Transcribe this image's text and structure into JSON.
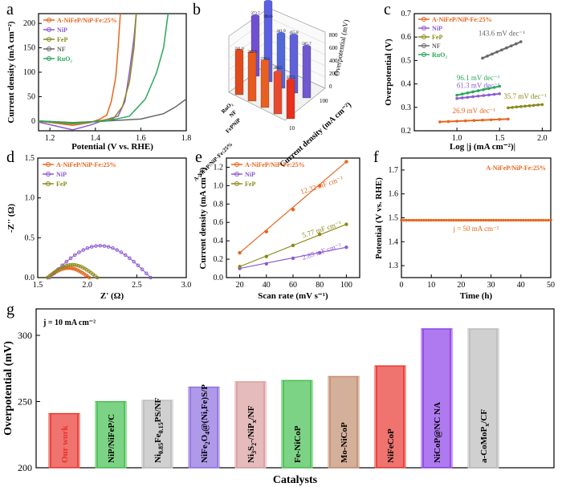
{
  "chart_data": [
    {
      "panel": "a",
      "type": "line",
      "xlabel": "Potential (V vs. RHE)",
      "ylabel": "Current density (mA cm⁻²)",
      "xlim": [
        1.15,
        1.8
      ],
      "ylim": [
        -20,
        220
      ],
      "xticks": [
        "1.2",
        "1.4",
        "1.6",
        "1.8"
      ],
      "yticks": [
        "0",
        "50",
        "100",
        "150",
        "200"
      ],
      "legend_position": "top-left",
      "series": [
        {
          "name": "A-NiFeP/NiP-Fe:25%",
          "color": "#e8651e",
          "points": [
            [
              1.15,
              0
            ],
            [
              1.3,
              -9
            ],
            [
              1.38,
              -3
            ],
            [
              1.42,
              4
            ],
            [
              1.45,
              12
            ],
            [
              1.47,
              40
            ],
            [
              1.49,
              90
            ],
            [
              1.5,
              150
            ],
            [
              1.51,
              220
            ]
          ]
        },
        {
          "name": "NiP",
          "color": "#8e5ad3",
          "points": [
            [
              1.15,
              -2
            ],
            [
              1.3,
              -18
            ],
            [
              1.38,
              -8
            ],
            [
              1.44,
              2
            ],
            [
              1.5,
              10
            ],
            [
              1.53,
              40
            ],
            [
              1.55,
              100
            ],
            [
              1.57,
              170
            ],
            [
              1.58,
              220
            ]
          ]
        },
        {
          "name": "FeP",
          "color": "#8a8a1a",
          "points": [
            [
              1.15,
              -1
            ],
            [
              1.3,
              -6
            ],
            [
              1.38,
              -2
            ],
            [
              1.48,
              5
            ],
            [
              1.52,
              30
            ],
            [
              1.55,
              80
            ],
            [
              1.57,
              150
            ],
            [
              1.58,
              220
            ]
          ]
        },
        {
          "name": "NF",
          "color": "#666666",
          "points": [
            [
              1.15,
              0
            ],
            [
              1.3,
              -3
            ],
            [
              1.45,
              0
            ],
            [
              1.6,
              4
            ],
            [
              1.7,
              15
            ],
            [
              1.75,
              28
            ],
            [
              1.8,
              45
            ]
          ]
        },
        {
          "name": "RuO₂",
          "color": "#2aa85a",
          "points": [
            [
              1.15,
              0
            ],
            [
              1.3,
              -4
            ],
            [
              1.45,
              0
            ],
            [
              1.55,
              10
            ],
            [
              1.62,
              45
            ],
            [
              1.67,
              100
            ],
            [
              1.7,
              150
            ],
            [
              1.72,
              220
            ]
          ]
        }
      ]
    },
    {
      "panel": "b",
      "type": "bar",
      "zlabel": "Overpotential (mV)",
      "xlabel": "Current density (mA cm⁻²)",
      "categories_current": [
        "10",
        "100"
      ],
      "catalysts": [
        "A-NiFeP/NiP-Fe:25%",
        "FeP",
        "NiP",
        "NF",
        "RuO₂"
      ],
      "zticks": [
        "0",
        "200",
        "400",
        "600",
        "800"
      ],
      "bar_labels": [
        "241.0",
        "262.3",
        "279.3",
        "286.5",
        "327.5",
        "373.7",
        "393.6",
        "441.9",
        "455.8",
        "585.7"
      ]
    },
    {
      "panel": "c",
      "type": "scatter",
      "xlabel": "Log |j (mA cm⁻²)|",
      "ylabel": "Overpotential (V)",
      "xlim": [
        0.5,
        2.1
      ],
      "ylim": [
        0.2,
        0.7
      ],
      "xticks": [
        "1.0",
        "1.5",
        "2.0"
      ],
      "yticks": [
        "0.2",
        "0.3",
        "0.4",
        "0.5",
        "0.6",
        "0.7"
      ],
      "legend_position": "top-left",
      "series": [
        {
          "name": "A-NiFeP/NiP-Fe:25%",
          "color": "#e8651e",
          "slope_label": "26.9 mV dec⁻¹",
          "x": [
            0.8,
            1.6
          ],
          "y": [
            0.238,
            0.25
          ]
        },
        {
          "name": "NiP",
          "color": "#8e5ad3",
          "slope_label": "61.3 mV dec⁻¹",
          "x": [
            1.0,
            1.5
          ],
          "y": [
            0.338,
            0.358
          ]
        },
        {
          "name": "FeP",
          "color": "#8a8a1a",
          "slope_label": "35.7 mV dec⁻¹",
          "x": [
            1.6,
            2.0
          ],
          "y": [
            0.298,
            0.312
          ]
        },
        {
          "name": "NF",
          "color": "#666666",
          "slope_label": "143.6 mV dec⁻¹",
          "x": [
            1.3,
            1.75
          ],
          "y": [
            0.51,
            0.58
          ]
        },
        {
          "name": "RuO₂",
          "color": "#2aa85a",
          "slope_label": "96.1 mV dec⁻¹",
          "x": [
            1.0,
            1.5
          ],
          "y": [
            0.352,
            0.39
          ]
        }
      ]
    },
    {
      "panel": "d",
      "type": "scatter",
      "xlabel": "Z' (Ω)",
      "ylabel": "-Z'' (Ω)",
      "xlim": [
        1.5,
        3.0
      ],
      "ylim": [
        0,
        1.5
      ],
      "xticks": [
        "1.5",
        "2.0",
        "2.5",
        "3.0"
      ],
      "yticks": [
        "0.0",
        "0.5",
        "1.0",
        "1.5"
      ],
      "legend_position": "top-left",
      "series": [
        {
          "name": "A-NiFeP/NiP-Fe:25%",
          "color": "#e8651e",
          "arc": {
            "start": 1.6,
            "end": 2.02,
            "height": 0.12
          }
        },
        {
          "name": "NiP",
          "color": "#8e5ad3",
          "arc": {
            "start": 1.62,
            "end": 2.64,
            "height": 0.4
          }
        },
        {
          "name": "FeP",
          "color": "#8a8a1a",
          "arc": {
            "start": 1.6,
            "end": 2.1,
            "height": 0.16
          }
        }
      ]
    },
    {
      "panel": "e",
      "type": "scatter",
      "xlabel": "Scan rate (mV s⁻¹)",
      "ylabel": "Current density (mA cm⁻²)",
      "xlim": [
        10,
        110
      ],
      "ylim": [
        0.0,
        1.3
      ],
      "xticks": [
        "20",
        "40",
        "60",
        "80",
        "100"
      ],
      "yticks": [
        "0.0",
        "0.2",
        "0.4",
        "0.6",
        "0.8",
        "1.0",
        "1.2"
      ],
      "legend_position": "top-left",
      "x": [
        20,
        40,
        60,
        80,
        100
      ],
      "series": [
        {
          "name": "A-NiFeP/NiP-Fe:25%",
          "color": "#e8651e",
          "label": "12.32 mF cm⁻²",
          "values": [
            0.27,
            0.5,
            0.74,
            1.0,
            1.26
          ]
        },
        {
          "name": "NiP",
          "color": "#8e5ad3",
          "label": "2.89 mF cm⁻²",
          "values": [
            0.1,
            0.15,
            0.21,
            0.27,
            0.33
          ]
        },
        {
          "name": "FeP",
          "color": "#8a8a1a",
          "label": "5.77 mF cm⁻²",
          "values": [
            0.12,
            0.23,
            0.35,
            0.47,
            0.58
          ]
        }
      ]
    },
    {
      "panel": "f",
      "type": "line",
      "xlabel": "Time (h)",
      "ylabel": "Potential (V vs. RHE)",
      "xlim": [
        0,
        50
      ],
      "ylim": [
        1.25,
        1.75
      ],
      "xticks": [
        "0",
        "10",
        "20",
        "30",
        "40",
        "50"
      ],
      "yticks": [
        "1.3",
        "1.4",
        "1.5",
        "1.6",
        "1.7"
      ],
      "legend": "A-NiFeP/NiP-Fe:25%",
      "annotation": "j = 50 mA cm⁻²",
      "series": [
        {
          "name": "A-NiFeP/NiP-Fe:25%",
          "color": "#e8651e",
          "value": 1.49
        }
      ]
    },
    {
      "panel": "g",
      "type": "bar",
      "xlabel": "Catalysts",
      "ylabel": "Overpotential (mV)",
      "annotation": "j = 10 mA cm⁻²",
      "ylim": [
        200,
        320
      ],
      "yticks": [
        "200",
        "250",
        "300"
      ],
      "categories": [
        "Our work",
        "NiP/NiFeP/C",
        "Ni0.85Fe0.15PS/NF",
        "NiFe2O4@(Ni,Fe)S/P",
        "Ni3S2-/NiPx/NF",
        "Fe-NiCoP",
        "Mo-NiCoP",
        "NiFeCoP",
        "NiCoP@NC NA",
        "a-CoMoPx/CF"
      ],
      "values": [
        241,
        250,
        251,
        261,
        265,
        266,
        269,
        277,
        305,
        305
      ],
      "colors": [
        "#e8302a",
        "#3fbf4a",
        "#b9b9b9",
        "#8a6ae0",
        "#d89a9a",
        "#3fbf4a",
        "#c08a6a",
        "#e8302a",
        "#8a3ae8",
        "#b9b9b9"
      ]
    }
  ]
}
